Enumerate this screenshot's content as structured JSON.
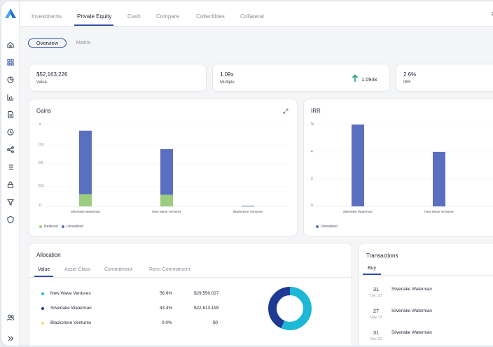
{
  "top_tabs": [
    "Investments",
    "Private Equity",
    "Cash",
    "Compare",
    "Collectibles",
    "Collateral"
  ],
  "active_tab": "Private Equity",
  "sub_tabs": [
    "Overview",
    "Matrix"
  ],
  "kpis": [
    {
      "value": "$52,163,226",
      "label": "Value"
    },
    {
      "value": "1.09x",
      "label": "Multiple",
      "trend": "1.093x",
      "trend_color": "#22a06b"
    },
    {
      "value": "2.6%",
      "label": "IRR"
    }
  ],
  "gains": {
    "title": "Gains",
    "unit_label": "x",
    "y_ticks": [
      "0.9",
      "0.6",
      "0.3",
      "0"
    ],
    "legend": [
      "Realized",
      "Unrealized"
    ]
  },
  "irr": {
    "title": "IRR",
    "unit_label": "%",
    "y_ticks": [
      "4",
      "2",
      "0"
    ],
    "legend": [
      "Unrealized"
    ]
  },
  "chart_data": [
    {
      "type": "bar",
      "title": "Gains",
      "categories": [
        "Silverlake Waterman",
        "New Wave Ventures",
        "Blackstone Ventures"
      ],
      "series": [
        {
          "name": "Realized",
          "color": "#9ccc7f",
          "values": [
            0.18,
            0.17,
            0
          ]
        },
        {
          "name": "Unrealized",
          "color": "#5a6fc0",
          "values": [
            0.93,
            0.67,
            0.01
          ]
        }
      ],
      "stacked": true,
      "ylabel": "x",
      "ylim": [
        0,
        1.2
      ]
    },
    {
      "type": "bar",
      "title": "IRR",
      "categories": [
        "Silverlake Waterman",
        "New Wave Ventures"
      ],
      "series": [
        {
          "name": "Unrealized",
          "color": "#5a6fc0",
          "values": [
            6.0,
            4.0
          ]
        }
      ],
      "ylabel": "%",
      "ylim": [
        0,
        6
      ]
    }
  ],
  "allocation": {
    "title": "Allocation",
    "tabs": [
      "Value",
      "Asset Class",
      "Commitment",
      "Rem. Commitment"
    ],
    "rows": [
      {
        "name": "New Wave Ventures",
        "pct": "56.6%",
        "amount": "$29,550,027",
        "color": "#1cb8d6",
        "share": 56.6
      },
      {
        "name": "Silverlake Waterman",
        "pct": "43.4%",
        "amount": "$22,613,199",
        "color": "#1f3a93",
        "share": 43.4
      },
      {
        "name": "Blackstone Ventures",
        "pct": "0.0%",
        "amount": "$0",
        "color": "#f0de6a",
        "share": 0.0
      }
    ]
  },
  "transactions": {
    "title": "Transactions",
    "tab": "Buy",
    "items": [
      {
        "day": "31",
        "month": "Dec 23",
        "name": "Silverlake Waterman"
      },
      {
        "day": "27",
        "month": "May 23",
        "name": "Silverlake Waterman"
      },
      {
        "day": "31",
        "month": "Dec 22",
        "name": "Silverlake Waterman"
      }
    ]
  },
  "colors": {
    "accent": "#2f4ea3",
    "bar_blue": "#5a6fc0",
    "bar_green": "#9ccc7f"
  }
}
